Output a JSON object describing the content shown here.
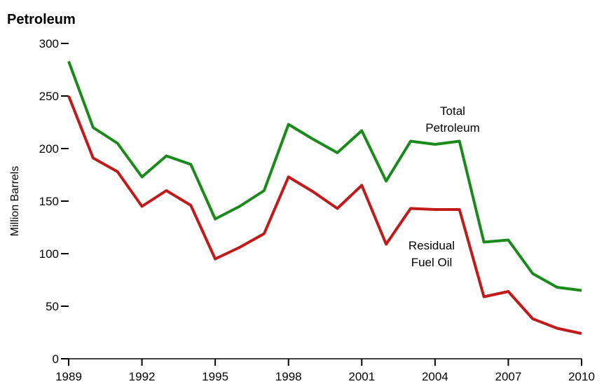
{
  "chart_data": {
    "type": "line",
    "title": "Petroleum",
    "ylabel": "Million Barrels",
    "x": [
      1989,
      1990,
      1991,
      1992,
      1993,
      1994,
      1995,
      1996,
      1997,
      1998,
      1999,
      2000,
      2001,
      2002,
      2003,
      2004,
      2005,
      2006,
      2007,
      2008,
      2009,
      2010
    ],
    "series": [
      {
        "label": [
          "Total",
          "Petroleum"
        ],
        "color": "#1a8a1a",
        "values": [
          283,
          220,
          205,
          173,
          193,
          185,
          133,
          145,
          160,
          223,
          209,
          196,
          217,
          169,
          207,
          204,
          207,
          111,
          113,
          81,
          68,
          65
        ]
      },
      {
        "label": [
          "Residual",
          "Fuel Oil"
        ],
        "color": "#c01a1a",
        "values": [
          250,
          191,
          178,
          145,
          160,
          146,
          95,
          106,
          119,
          173,
          159,
          143,
          165,
          109,
          143,
          142,
          142,
          59,
          64,
          38,
          29,
          24
        ]
      }
    ],
    "xlim": [
      1989,
      2010
    ],
    "xticks": [
      1989,
      1992,
      1995,
      1998,
      2001,
      2004,
      2007,
      2010
    ],
    "ylim": [
      0,
      300
    ],
    "yticks": [
      0,
      50,
      100,
      150,
      200,
      250,
      300
    ]
  }
}
